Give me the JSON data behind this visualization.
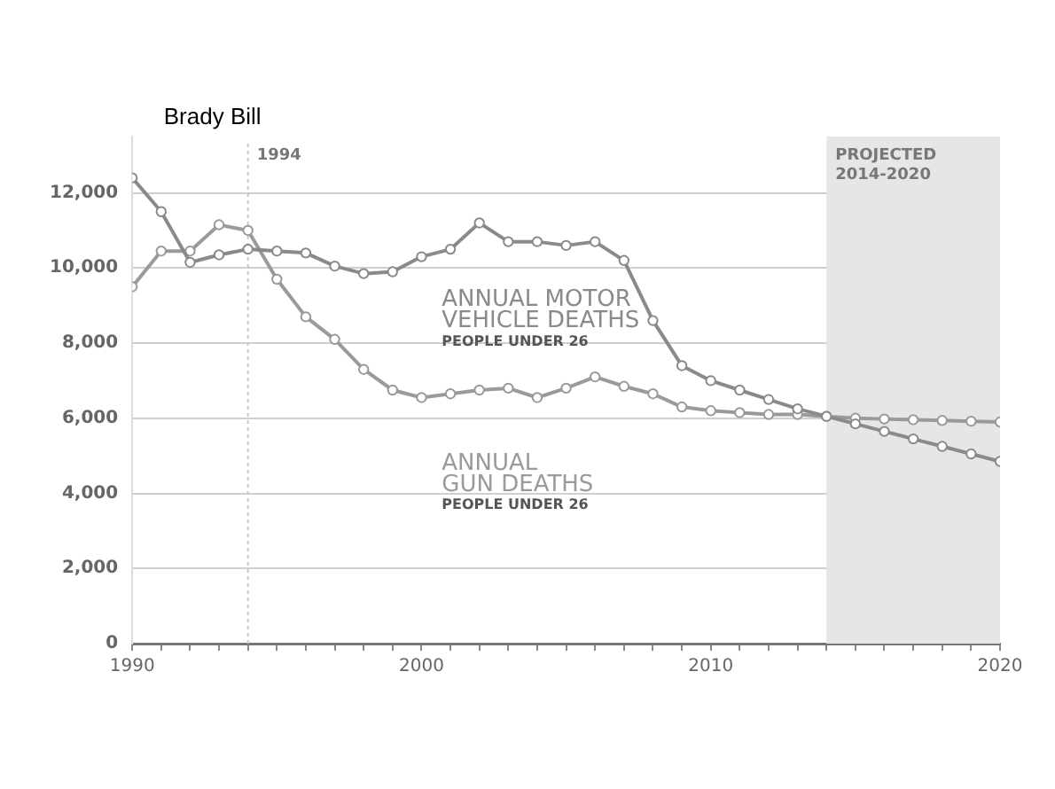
{
  "chart_data": {
    "type": "line",
    "x": [
      1990,
      1991,
      1992,
      1993,
      1994,
      1995,
      1996,
      1997,
      1998,
      1999,
      2000,
      2001,
      2002,
      2003,
      2004,
      2005,
      2006,
      2007,
      2008,
      2009,
      2010,
      2011,
      2012,
      2013,
      2014,
      2015,
      2016,
      2017,
      2018,
      2019,
      2020
    ],
    "series": [
      {
        "name": "ANNUAL MOTOR VEHICLE DEATHS",
        "color": "#8a8a8a",
        "values": [
          12400,
          11500,
          10150,
          10350,
          10500,
          10450,
          10400,
          10050,
          9850,
          9900,
          10300,
          10500,
          11200,
          10700,
          10700,
          10600,
          10700,
          10200,
          8600,
          7400,
          7000,
          6750,
          6500,
          6250,
          6050,
          5850,
          5650,
          5450,
          5250,
          5050,
          4850
        ]
      },
      {
        "name": "ANNUAL GUN DEATHS",
        "color": "#9a9a9a",
        "values": [
          9500,
          10450,
          10450,
          11150,
          11000,
          9700,
          8700,
          8100,
          7300,
          6750,
          6550,
          6650,
          6750,
          6800,
          6550,
          6800,
          7100,
          6850,
          6650,
          6300,
          6200,
          6150,
          6100,
          6100,
          6050,
          6000,
          5980,
          5960,
          5940,
          5920,
          5900
        ]
      }
    ],
    "xlim": [
      1990,
      2020
    ],
    "xticks": [
      1990,
      {
        "value": 1991,
        "label": null
      },
      {
        "value": 1992,
        "label": null
      },
      {
        "value": 1993,
        "label": null
      },
      {
        "value": 1994,
        "label": null
      },
      {
        "value": 1995,
        "label": null
      },
      {
        "value": 1996,
        "label": null
      },
      {
        "value": 1997,
        "label": null
      },
      {
        "value": 1998,
        "label": null
      },
      {
        "value": 1999,
        "label": null
      },
      2000,
      {
        "value": 2001,
        "label": null
      },
      {
        "value": 2002,
        "label": null
      },
      {
        "value": 2003,
        "label": null
      },
      {
        "value": 2004,
        "label": null
      },
      {
        "value": 2005,
        "label": null
      },
      {
        "value": 2006,
        "label": null
      },
      {
        "value": 2007,
        "label": null
      },
      {
        "value": 2008,
        "label": null
      },
      {
        "value": 2009,
        "label": null
      },
      2010,
      {
        "value": 2011,
        "label": null
      },
      {
        "value": 2012,
        "label": null
      },
      {
        "value": 2013,
        "label": null
      },
      {
        "value": 2014,
        "label": null
      },
      {
        "value": 2015,
        "label": null
      },
      {
        "value": 2016,
        "label": null
      },
      {
        "value": 2017,
        "label": null
      },
      {
        "value": 2018,
        "label": null
      },
      {
        "value": 2019,
        "label": null
      },
      2020
    ],
    "ylim": [
      0,
      13500
    ],
    "yticks": [
      0,
      {
        "value": 2000,
        "label": "2,000"
      },
      {
        "value": 4000,
        "label": "4,000"
      },
      {
        "value": 6000,
        "label": "6,000"
      },
      {
        "value": 8000,
        "label": "8,000"
      },
      {
        "value": 10000,
        "label": "10,000"
      },
      {
        "value": 12000,
        "label": "12,000"
      }
    ],
    "grid": "y",
    "legend": false,
    "marker": "circle",
    "line_style": "solid",
    "ref_lines": [
      {
        "axis": "x",
        "value": 1994,
        "label": "1994",
        "color": "#c8c8c8",
        "line_style": "dotted"
      }
    ],
    "bands": [
      {
        "axis": "x",
        "from": 2014,
        "to": 2020,
        "label": "PROJECTED 2014-2020",
        "color": "#e6e6e6"
      }
    ],
    "annotations": [
      "Brady Bill",
      "PEOPLE UNDER 26",
      "PEOPLE UNDER 26"
    ]
  }
}
